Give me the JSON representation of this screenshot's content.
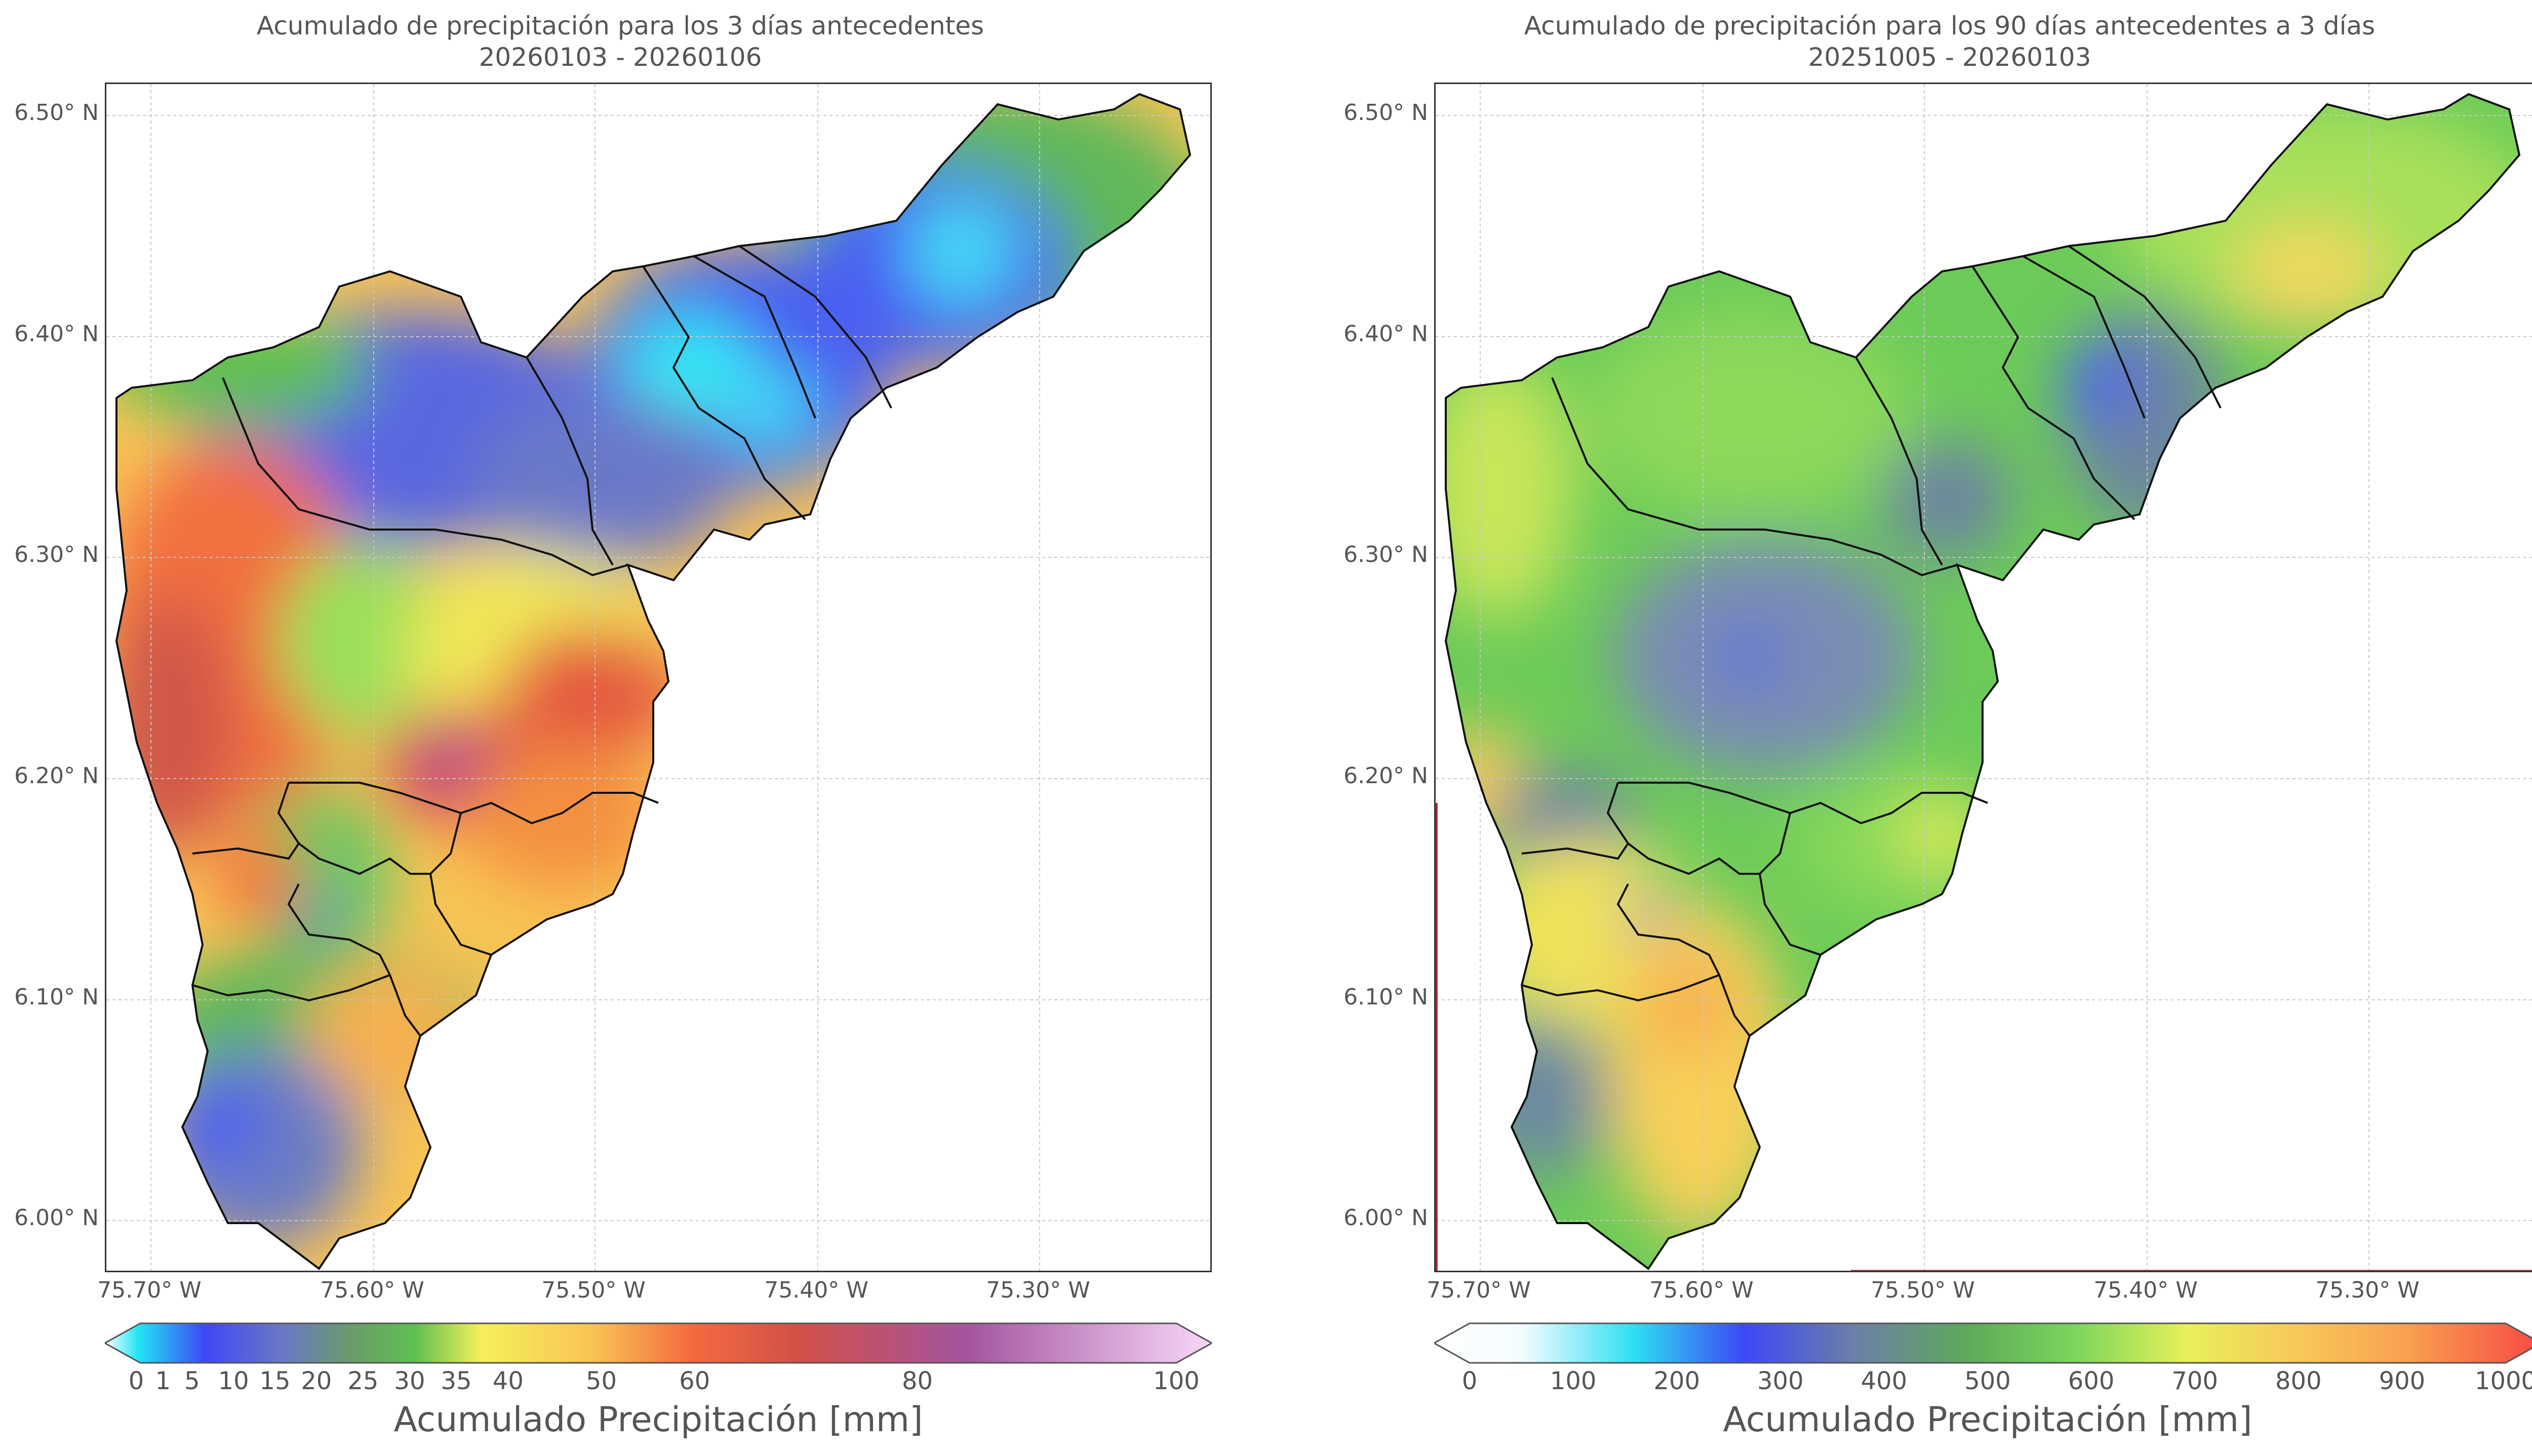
{
  "left": {
    "title_line1": "Acumulado de precipitación para los 3 días antecedentes",
    "title_line2": "20260103 - 20260106",
    "colorbar_label": "Acumulado Precipitación [mm]",
    "colorbar_ticks": [
      "0",
      "1",
      "5",
      "10",
      "15",
      "20",
      "25",
      "30",
      "35",
      "40",
      "50",
      "60",
      "80",
      "100"
    ],
    "colorbar_colors": [
      "#ffffff",
      "#22e6f5",
      "#3f47f5",
      "#6b78c4",
      "#6a9a6e",
      "#5fc050",
      "#8ce05a",
      "#f6f05a",
      "#f8c455",
      "#f79a48",
      "#f45a40",
      "#c05a5a",
      "#a355a0",
      "#f8d8f8"
    ]
  },
  "right": {
    "title_line1": "Acumulado de precipitación para los 90 días antecedentes a 3 días",
    "title_line2": "20251005 - 20260103",
    "colorbar_label": "Acumulado Precipitación [mm]",
    "colorbar_ticks": [
      "0",
      "100",
      "200",
      "300",
      "400",
      "500",
      "600",
      "700",
      "800",
      "900",
      "1000"
    ],
    "colorbar_colors": [
      "#ffffff",
      "#f4fbff",
      "#2ee0f2",
      "#3d48f5",
      "#6d7fa8",
      "#5ea85a",
      "#7cd65c",
      "#e8f05a",
      "#f8c85a",
      "#f8a050",
      "#f54a45"
    ]
  },
  "y_ticks": [
    "6.50° N",
    "6.40° N",
    "6.30° N",
    "6.20° N",
    "6.10° N",
    "6.00° N"
  ],
  "x_ticks": [
    "75.70° W",
    "75.60° W",
    "75.50° W",
    "75.40° W",
    "75.30° W"
  ],
  "colors": {
    "boundary": "#111111",
    "grid": "#c8c8c8",
    "frame": "#333333"
  }
}
